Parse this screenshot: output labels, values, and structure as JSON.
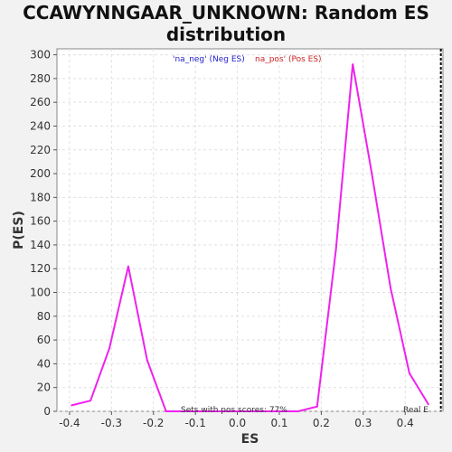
{
  "chart_data": {
    "type": "line",
    "title": "CCAWYNNGAAR_UNKNOWN: Random ES distribution",
    "xlabel": "ES",
    "ylabel": "P(ES)",
    "xlim": [
      -0.43,
      0.49
    ],
    "ylim": [
      0,
      305
    ],
    "xticks": [
      -0.4,
      -0.3,
      -0.2,
      -0.1,
      0.0,
      0.1,
      0.2,
      0.3,
      0.4
    ],
    "xtick_labels": [
      "-0.4",
      "-0.3",
      "-0.2",
      "-0.1",
      "0.0",
      "0.1",
      "0.2",
      "0.3",
      "0.4"
    ],
    "yticks": [
      0,
      20,
      40,
      60,
      80,
      100,
      120,
      140,
      160,
      180,
      200,
      220,
      240,
      260,
      280,
      300
    ],
    "grid": true,
    "series": [
      {
        "color": "#ee22ee",
        "x": [
          -0.395,
          -0.35,
          -0.305,
          -0.26,
          -0.215,
          -0.17,
          -0.125,
          -0.08,
          -0.035,
          0.01,
          0.055,
          0.1,
          0.145,
          0.19,
          0.235,
          0.275,
          0.32,
          0.365,
          0.41,
          0.455
        ],
        "y": [
          5,
          9,
          53,
          122,
          43,
          0,
          0,
          0,
          0,
          0,
          0,
          0,
          0,
          4,
          136,
          292,
          201,
          104,
          32,
          6
        ]
      }
    ],
    "legend": [
      {
        "label": "'na_neg' (Neg ES)",
        "color": "#2222cc"
      },
      {
        "label": "na_pos' (Pos ES)",
        "color": "#cc2222"
      }
    ],
    "annotations": {
      "bottom_text": "Sets with pos scores: 77%",
      "right_text": "Real E"
    },
    "real_es_x": 0.485
  }
}
